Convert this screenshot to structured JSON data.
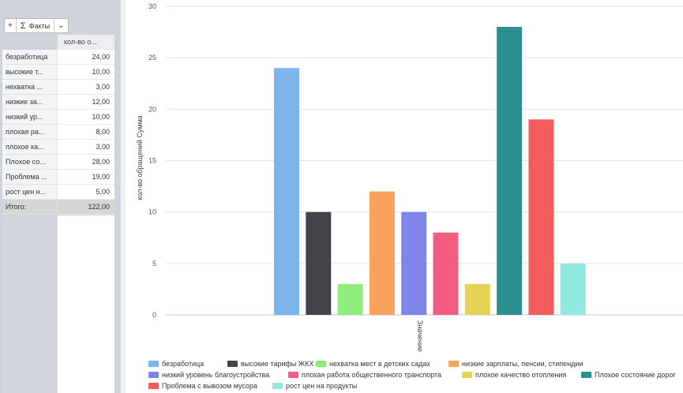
{
  "toolbar": {
    "add_label": "+",
    "facts_label": "Факты",
    "dropdown_label": "⌄"
  },
  "pivot": {
    "measure_header": "кол-во о...",
    "rows": [
      {
        "label": "безработица",
        "value": "24,00"
      },
      {
        "label": "высокие т...",
        "value": "10,00"
      },
      {
        "label": "нехватка ...",
        "value": "3,00"
      },
      {
        "label": "низкие за...",
        "value": "12,00"
      },
      {
        "label": "низкий ур...",
        "value": "10,00"
      },
      {
        "label": "плохая ра...",
        "value": "8,00"
      },
      {
        "label": "плохое ка...",
        "value": "3,00"
      },
      {
        "label": "Плохое со...",
        "value": "28,00"
      },
      {
        "label": "Проблема ...",
        "value": "19,00"
      },
      {
        "label": "рост цен н...",
        "value": "5,00"
      }
    ],
    "total": {
      "label": "Итого:",
      "value": "122,00"
    }
  },
  "colors": {
    "grid": "#e4e6ea",
    "axis": "#bfc3c9"
  },
  "chart_data": {
    "type": "bar",
    "title": "",
    "xlabel": "Значение",
    "ylabel": "кол-во обращений Сумма",
    "ylim": [
      0,
      30
    ],
    "yticks": [
      0,
      5,
      10,
      15,
      20,
      25,
      30
    ],
    "grid": true,
    "legend_position": "bottom",
    "series": [
      {
        "name": "безработица",
        "value": 24,
        "color": "#7cb5ec"
      },
      {
        "name": "высокие тарифы ЖКХ",
        "value": 10,
        "color": "#434348"
      },
      {
        "name": "нехватка мест в детских садах",
        "value": 3,
        "color": "#90ed7d"
      },
      {
        "name": "низкие зарплаты, пенсии, стипендии",
        "value": 12,
        "color": "#f7a35c"
      },
      {
        "name": "низкий уровень благоустройства",
        "value": 10,
        "color": "#8085e9"
      },
      {
        "name": "плохая работа общественного транспорта",
        "value": 8,
        "color": "#f15c80"
      },
      {
        "name": "плохое качество отопления",
        "value": 3,
        "color": "#e4d354"
      },
      {
        "name": "Плохое состояние дорог",
        "value": 28,
        "color": "#2b908f"
      },
      {
        "name": "Проблема с вывозом мусора",
        "value": 19,
        "color": "#f45b5b"
      },
      {
        "name": "рост цен на продукты",
        "value": 5,
        "color": "#91e8e1"
      }
    ]
  }
}
